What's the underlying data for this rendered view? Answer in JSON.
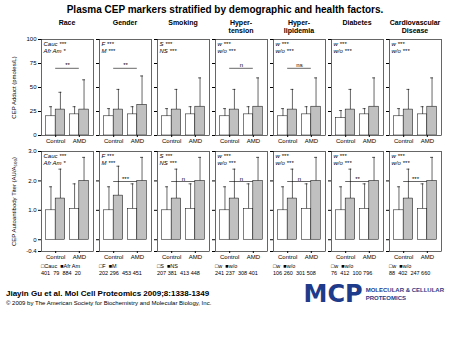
{
  "title": "Plasma CEP markers stratified by demographic and health factors.",
  "annotations": [
    {
      "text": "Jiayin Gu et al. Mol Cell Proteomics 2009;8:1338-1349"
    },
    {
      "text": "© 2009 by The American Society for Biochemistry and Molecular Biology, Inc."
    },
    {
      "text": "MCP",
      "color": "#1e3a8a"
    },
    {
      "text": "MOLECULAR & CELLULAR",
      "color": "#1e3a8a"
    },
    {
      "text": "PROTEOMICS",
      "color": "#1e3a8a"
    }
  ],
  "chart_data": [
    {
      "type": "bar",
      "title": "Race",
      "ylabel": "CEP Adduct (pmoles/L)",
      "categories": [
        "Control",
        "AMD"
      ],
      "series": [
        {
          "name": "□Cauc",
          "color": "#ffffff",
          "values": [
            20,
            22
          ],
          "error_high": [
            30,
            30
          ]
        },
        {
          "name": "■Afr Am",
          "color": "#c0c0c0",
          "values": [
            27,
            27
          ],
          "error_high": [
            45,
            58
          ]
        }
      ],
      "ylim": [
        0,
        100
      ],
      "yticks": [
        0,
        25,
        50,
        75,
        100
      ],
      "annotations": [
        {
          "text": "Cauc ***"
        },
        {
          "text": "Afr Am *"
        },
        {
          "text": "**",
          "between": [
            "Control",
            "AMD"
          ]
        }
      ]
    },
    {
      "type": "bar",
      "title": "Gender",
      "categories": [
        "Control",
        "AMD"
      ],
      "series": [
        {
          "name": "□F",
          "color": "#ffffff",
          "values": [
            20,
            22
          ],
          "error_high": [
            28,
            30
          ]
        },
        {
          "name": "■M",
          "color": "#c0c0c0",
          "values": [
            27,
            32
          ],
          "error_high": [
            48,
            62
          ]
        }
      ],
      "ylim": [
        0,
        100
      ],
      "yticks": [
        0,
        25,
        50,
        75,
        100
      ],
      "tick_labels": "x",
      "annotations": [
        {
          "text": "F ***"
        },
        {
          "text": "M ***"
        },
        {
          "text": "**",
          "between": [
            "Control",
            "AMD"
          ]
        }
      ]
    },
    {
      "type": "bar",
      "title": "Smoking",
      "categories": [
        "Control",
        "AMD"
      ],
      "series": [
        {
          "name": "□S",
          "color": "#ffffff",
          "values": [
            20,
            22
          ],
          "error_high": [
            28,
            30
          ]
        },
        {
          "name": "■NS",
          "color": "#c0c0c0",
          "values": [
            27,
            30
          ],
          "error_high": [
            48,
            60
          ]
        }
      ],
      "ylim": [
        0,
        100
      ],
      "yticks": [
        0,
        25,
        50,
        75,
        100
      ],
      "tick_labels": "x",
      "annotations": [
        {
          "text": "S ***"
        },
        {
          "text": "NS ***"
        }
      ]
    },
    {
      "type": "bar",
      "title": "Hyper-\ntension",
      "categories": [
        "Control",
        "AMD"
      ],
      "series": [
        {
          "name": "□w",
          "color": "#ffffff",
          "values": [
            20,
            22
          ],
          "error_high": [
            28,
            30
          ]
        },
        {
          "name": "■w/o",
          "color": "#c0c0c0",
          "values": [
            27,
            30
          ],
          "error_high": [
            48,
            60
          ]
        }
      ],
      "ylim": [
        0,
        100
      ],
      "yticks": [
        0,
        25,
        50,
        75,
        100
      ],
      "tick_labels": "x",
      "annotations": [
        {
          "text": "w ***"
        },
        {
          "text": "w/o ***"
        },
        {
          "text": "n",
          "between": [
            "Control",
            "AMD"
          ]
        }
      ]
    },
    {
      "type": "bar",
      "title": "Hyper-\nlipidemia",
      "categories": [
        "Control",
        "AMD"
      ],
      "series": [
        {
          "name": "□w",
          "color": "#ffffff",
          "values": [
            20,
            22
          ],
          "error_high": [
            28,
            30
          ]
        },
        {
          "name": "■w/o",
          "color": "#c0c0c0",
          "values": [
            27,
            30
          ],
          "error_high": [
            48,
            60
          ]
        }
      ],
      "ylim": [
        0,
        100
      ],
      "yticks": [
        0,
        25,
        50,
        75,
        100
      ],
      "tick_labels": "x",
      "annotations": [
        {
          "text": "w ***"
        },
        {
          "text": "w/o ***"
        },
        {
          "text": "ns",
          "between": [
            "Control",
            "AMD"
          ]
        }
      ]
    },
    {
      "type": "bar",
      "title": "Diabetes",
      "categories": [
        "Control",
        "AMD"
      ],
      "series": [
        {
          "name": "□w",
          "color": "#ffffff",
          "values": [
            18,
            22
          ],
          "error_high": [
            26,
            28
          ]
        },
        {
          "name": "■w/o",
          "color": "#c0c0c0",
          "values": [
            27,
            30
          ],
          "error_high": [
            48,
            60
          ]
        }
      ],
      "ylim": [
        0,
        100
      ],
      "yticks": [
        0,
        25,
        50,
        75,
        100
      ],
      "tick_labels": "x",
      "annotations": [
        {
          "text": "w ***"
        },
        {
          "text": "w/o ***"
        }
      ]
    },
    {
      "type": "bar",
      "title": "Cardiovascular\nDisease",
      "categories": [
        "Control",
        "AMD"
      ],
      "series": [
        {
          "name": "□w",
          "color": "#ffffff",
          "values": [
            20,
            22
          ],
          "error_high": [
            28,
            30
          ]
        },
        {
          "name": "■w/o",
          "color": "#c0c0c0",
          "values": [
            27,
            30
          ],
          "error_high": [
            48,
            60
          ]
        }
      ],
      "ylim": [
        0,
        100
      ],
      "yticks": [
        0,
        25,
        50,
        75,
        100
      ],
      "tick_labels": "x",
      "annotations": [
        {
          "text": "w ***"
        },
        {
          "text": "w/o ***"
        }
      ]
    },
    {
      "type": "bar",
      "ylabel": "CEP Autoantibody Titer (AU/A₅₀₀)",
      "categories": [
        "Control",
        "AMD"
      ],
      "series": [
        {
          "name": "□Cauc",
          "color": "#ffffff",
          "values": [
            1.0,
            1.05
          ],
          "error_high": [
            1.8,
            1.9
          ]
        },
        {
          "name": "■Afr Am",
          "color": "#c0c0c0",
          "values": [
            1.4,
            2.0
          ],
          "error_high": [
            2.4,
            2.8
          ]
        }
      ],
      "ylim": [
        -0.4,
        3.0
      ],
      "yticks": [
        -0.4,
        0,
        {
          "value": 1,
          "label": "1.0"
        },
        {
          "value": 2,
          "label": "2.0"
        },
        {
          "value": 3,
          "label": "3.0"
        }
      ],
      "legend": "bottom",
      "sample_sizes": "401  79  884  20",
      "annotations": [
        {
          "text": "Cauc ***"
        },
        {
          "text": "Afr Am *"
        }
      ]
    },
    {
      "type": "bar",
      "categories": [
        "Control",
        "AMD"
      ],
      "series": [
        {
          "name": "□F",
          "color": "#ffffff",
          "values": [
            1.0,
            1.05
          ],
          "error_high": [
            1.8,
            1.9
          ]
        },
        {
          "name": "■M",
          "color": "#c0c0c0",
          "values": [
            1.5,
            2.0
          ],
          "error_high": [
            2.5,
            2.8
          ]
        }
      ],
      "ylim": [
        -0.4,
        3.0
      ],
      "yticks": [
        -0.4,
        0,
        {
          "value": 1,
          "label": "1.0"
        },
        {
          "value": 2,
          "label": "2.0"
        },
        {
          "value": 3,
          "label": "3.0"
        }
      ],
      "tick_labels": "x",
      "legend": "bottom",
      "sample_sizes": "202 296  453 451",
      "annotations": [
        {
          "text": "F ***"
        },
        {
          "text": "M ***"
        },
        {
          "text": "***",
          "between": [
            "Control",
            "AMD"
          ]
        }
      ]
    },
    {
      "type": "bar",
      "categories": [
        "Control",
        "AMD"
      ],
      "series": [
        {
          "name": "□S",
          "color": "#ffffff",
          "values": [
            1.0,
            1.05
          ],
          "error_high": [
            1.8,
            1.9
          ]
        },
        {
          "name": "■NS",
          "color": "#c0c0c0",
          "values": [
            1.4,
            2.0
          ],
          "error_high": [
            2.4,
            2.8
          ]
        }
      ],
      "ylim": [
        -0.4,
        3.0
      ],
      "yticks": [
        -0.4,
        0,
        {
          "value": 1,
          "label": "1.0"
        },
        {
          "value": 2,
          "label": "2.0"
        },
        {
          "value": 3,
          "label": "3.0"
        }
      ],
      "tick_labels": "x",
      "legend": "bottom",
      "sample_sizes": "207 381  413 448",
      "annotations": [
        {
          "text": "S ***"
        },
        {
          "text": "NS ***"
        },
        {
          "text": "n",
          "between": [
            "Control",
            "AMD"
          ]
        }
      ]
    },
    {
      "type": "bar",
      "categories": [
        "Control",
        "AMD"
      ],
      "series": [
        {
          "name": "□w",
          "color": "#ffffff",
          "values": [
            1.0,
            1.05
          ],
          "error_high": [
            1.8,
            1.9
          ]
        },
        {
          "name": "■w/o",
          "color": "#c0c0c0",
          "values": [
            1.4,
            2.0
          ],
          "error_high": [
            2.4,
            2.8
          ]
        }
      ],
      "ylim": [
        -0.4,
        3.0
      ],
      "yticks": [
        -0.4,
        0,
        {
          "value": 1,
          "label": "1.0"
        },
        {
          "value": 2,
          "label": "2.0"
        },
        {
          "value": 3,
          "label": "3.0"
        }
      ],
      "tick_labels": "x",
      "legend": "bottom",
      "sample_sizes": "241 237  308 401",
      "annotations": [
        {
          "text": "w ***"
        },
        {
          "text": "w/o ***"
        },
        {
          "text": "n",
          "between": [
            "Control",
            "AMD"
          ]
        }
      ]
    },
    {
      "type": "bar",
      "categories": [
        "Control",
        "AMD"
      ],
      "series": [
        {
          "name": "□w",
          "color": "#ffffff",
          "values": [
            1.0,
            1.05
          ],
          "error_high": [
            1.8,
            1.9
          ]
        },
        {
          "name": "■w/o",
          "color": "#c0c0c0",
          "values": [
            1.4,
            2.0
          ],
          "error_high": [
            2.4,
            2.8
          ]
        }
      ],
      "ylim": [
        -0.4,
        3.0
      ],
      "yticks": [
        -0.4,
        0,
        {
          "value": 1,
          "label": "1.0"
        },
        {
          "value": 2,
          "label": "2.0"
        },
        {
          "value": 3,
          "label": "3.0"
        }
      ],
      "tick_labels": "x",
      "legend": "bottom",
      "sample_sizes": "106 260  301 508",
      "annotations": [
        {
          "text": "w ***"
        },
        {
          "text": "w/o ***"
        },
        {
          "text": "n",
          "between": [
            "Control",
            "AMD"
          ]
        }
      ]
    },
    {
      "type": "bar",
      "categories": [
        "Control",
        "AMD"
      ],
      "series": [
        {
          "name": "□w",
          "color": "#ffffff",
          "values": [
            1.0,
            1.05
          ],
          "error_high": [
            1.8,
            1.9
          ]
        },
        {
          "name": "■w/o",
          "color": "#c0c0c0",
          "values": [
            1.4,
            2.0
          ],
          "error_high": [
            2.4,
            2.8
          ]
        }
      ],
      "ylim": [
        -0.4,
        3.0
      ],
      "yticks": [
        -0.4,
        0,
        {
          "value": 1,
          "label": "1.0"
        },
        {
          "value": 2,
          "label": "2.0"
        },
        {
          "value": 3,
          "label": "3.0"
        }
      ],
      "tick_labels": "x",
      "legend": "bottom",
      "sample_sizes": "76  412  100 796",
      "annotations": [
        {
          "text": "w ***"
        },
        {
          "text": "w/o ***"
        },
        {
          "text": "**",
          "between": [
            "Control",
            "AMD"
          ]
        }
      ]
    },
    {
      "type": "bar",
      "categories": [
        "Control",
        "AMD"
      ],
      "series": [
        {
          "name": "□w",
          "color": "#ffffff",
          "values": [
            1.0,
            1.05
          ],
          "error_high": [
            1.8,
            1.9
          ]
        },
        {
          "name": "■w/o",
          "color": "#c0c0c0",
          "values": [
            1.4,
            2.0
          ],
          "error_high": [
            2.4,
            2.8
          ]
        }
      ],
      "ylim": [
        -0.4,
        3.0
      ],
      "yticks": [
        -0.4,
        0,
        {
          "value": 1,
          "label": "1.0"
        },
        {
          "value": 2,
          "label": "2.0"
        },
        {
          "value": 3,
          "label": "3.0"
        }
      ],
      "tick_labels": "x",
      "legend": "bottom",
      "sample_sizes": "88  402  247 660",
      "annotations": [
        {
          "text": "w ***"
        },
        {
          "text": "w/o ***"
        },
        {
          "text": "***",
          "between": [
            "Control",
            "AMD"
          ]
        }
      ]
    }
  ]
}
